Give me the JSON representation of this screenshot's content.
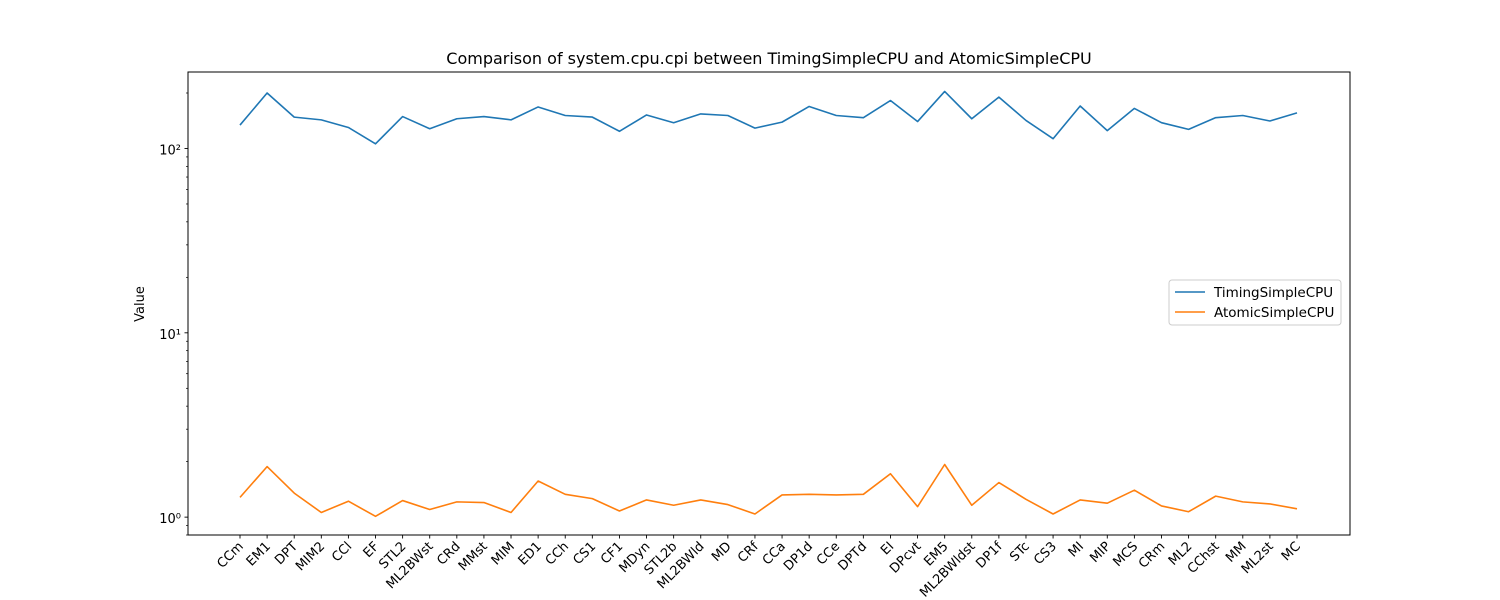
{
  "chart_data": {
    "type": "line",
    "title": "Comparison of system.cpu.cpi between TimingSimpleCPU and AtomicSimpleCPU",
    "xlabel": "",
    "ylabel": "Value",
    "yscale": "log",
    "ylim": [
      0.8,
      260
    ],
    "yticks": [
      {
        "value": 1,
        "label": "10⁰"
      },
      {
        "value": 10,
        "label": "10¹"
      },
      {
        "value": 100,
        "label": "10²"
      }
    ],
    "grid": false,
    "legend_position": "right",
    "categories": [
      "CCm",
      "EM1",
      "DPT",
      "MIM2",
      "CCl",
      "EF",
      "STL2",
      "ML2BWst",
      "CRd",
      "MMst",
      "MIM",
      "ED1",
      "CCh",
      "CS1",
      "CF1",
      "MDyn",
      "STL2b",
      "ML2BWld",
      "MD",
      "CRf",
      "CCa",
      "DP1d",
      "CCe",
      "DPTd",
      "EI",
      "DPcvt",
      "EM5",
      "ML2BWldst",
      "DP1f",
      "STc",
      "CS3",
      "MI",
      "MIP",
      "MCS",
      "CRm",
      "ML2",
      "CChst",
      "MM",
      "ML2st",
      "MC"
    ],
    "series": [
      {
        "name": "TimingSimpleCPU",
        "color": "#1f77b4",
        "values": [
          134,
          200,
          148,
          143,
          130,
          106,
          149,
          128,
          145,
          149,
          143,
          168,
          151,
          148,
          124,
          152,
          138,
          154,
          151,
          129,
          139,
          169,
          151,
          147,
          182,
          140,
          204,
          145,
          190,
          142,
          113,
          170,
          125,
          165,
          138,
          127,
          147,
          151,
          141,
          156
        ]
      },
      {
        "name": "AtomicSimpleCPU",
        "color": "#ff7f0e",
        "values": [
          1.28,
          1.88,
          1.35,
          1.06,
          1.22,
          1.01,
          1.23,
          1.1,
          1.21,
          1.2,
          1.06,
          1.57,
          1.33,
          1.26,
          1.08,
          1.24,
          1.16,
          1.24,
          1.17,
          1.04,
          1.32,
          1.33,
          1.32,
          1.33,
          1.72,
          1.14,
          1.93,
          1.16,
          1.54,
          1.25,
          1.04,
          1.24,
          1.19,
          1.4,
          1.15,
          1.07,
          1.3,
          1.21,
          1.18,
          1.11
        ]
      }
    ]
  }
}
